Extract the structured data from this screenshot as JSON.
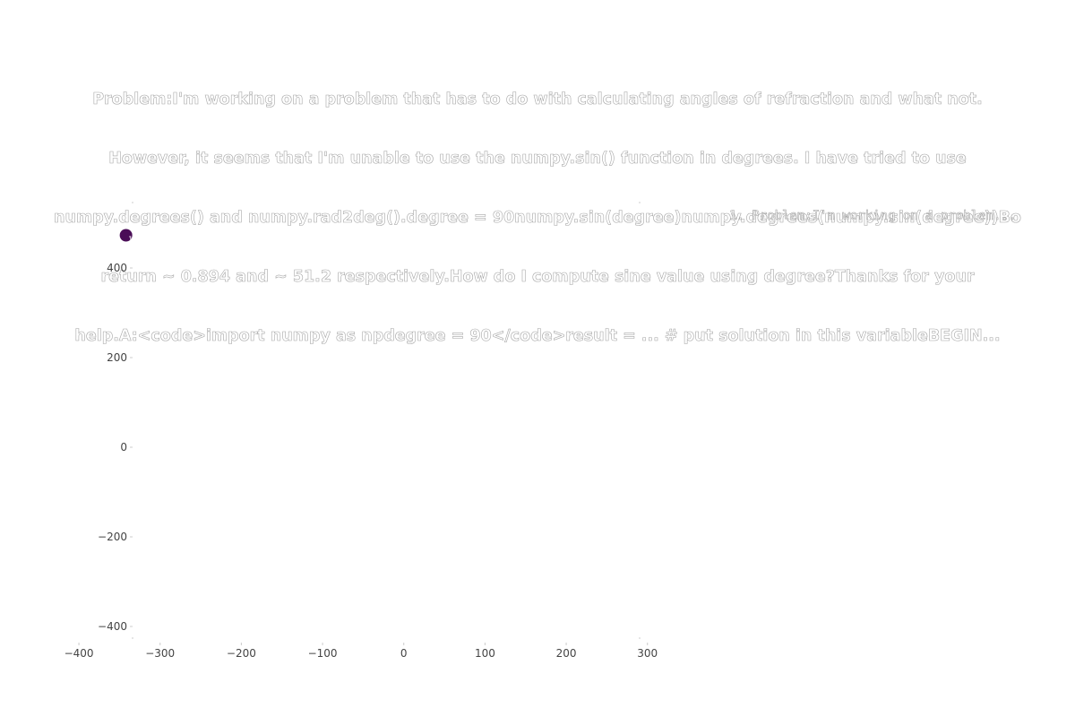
{
  "chart_data": {
    "type": "scatter",
    "title_lines": [
      "Problem:I'm working on a problem that has to do with calculating angles of refraction and what not.",
      "However, it seems that I'm unable to use the numpy.sin() function in degrees. I have tried to use",
      "numpy.degrees() and numpy.rad2deg().degree = 90numpy.sin(degree)numpy.degrees(numpy.sin(degree))Bo",
      "return ~ 0.894 and ~ 51.2 respectively.How do I compute sine value using degree?Thanks for your",
      "help.A:<code>import numpy as npdegree = 90</code>result = ... # put solution in this variableBEGIN..."
    ],
    "xlabel": "",
    "ylabel": "",
    "xlim": [
      -410,
      340
    ],
    "ylim": [
      -420,
      470
    ],
    "x_ticks": [
      -400,
      -300,
      -200,
      -100,
      0,
      100,
      200,
      300
    ],
    "x_tick_labels": [
      "−400",
      "−300",
      "−200",
      "−100",
      "0",
      "100",
      "200",
      "300"
    ],
    "y_ticks": [
      -400,
      -200,
      0,
      200,
      400
    ],
    "y_tick_labels": [
      "−400",
      "−200",
      "0",
      "200",
      "400"
    ],
    "grid": false,
    "legend_position": "top-right",
    "legend_entries": [
      "1. Problem:I'm working on a problem..."
    ],
    "points": [
      {
        "x": -342,
        "y": 473,
        "label": "1",
        "color": "#4a0d57"
      }
    ]
  }
}
